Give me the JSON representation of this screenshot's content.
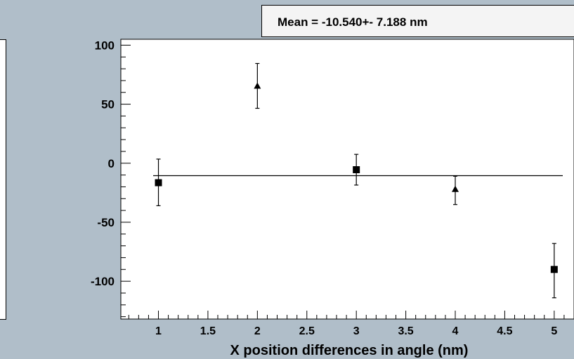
{
  "stats": {
    "mean_label": "Mean = -10.540+- 7.188 nm"
  },
  "chart_data": {
    "type": "scatter",
    "title": "",
    "xlabel": "X position differences in angle (nm)",
    "ylabel": "",
    "xlim": [
      0.62,
      5.2
    ],
    "ylim": [
      -132,
      105
    ],
    "xticks": [
      1,
      1.5,
      2,
      2.5,
      3,
      3.5,
      4,
      4.5,
      5
    ],
    "xtick_labels": [
      "1",
      "1.5",
      "2",
      "2.5",
      "3",
      "3.5",
      "4",
      "4.5",
      "5"
    ],
    "yticks": [
      100,
      50,
      0,
      -50,
      -100
    ],
    "ytick_labels": [
      "100",
      "50",
      "0",
      "-50",
      "-100"
    ],
    "mean_line": -10.54,
    "series": [
      {
        "marker": "square",
        "points": [
          {
            "x": 1,
            "y": -16.5,
            "err_low": 19.5,
            "err_high": 20
          },
          {
            "x": 3,
            "y": -5.5,
            "err_low": 13,
            "err_high": 13
          },
          {
            "x": 5,
            "y": -90,
            "err_low": 24,
            "err_high": 22
          }
        ]
      },
      {
        "marker": "triangle",
        "points": [
          {
            "x": 2,
            "y": 65.5,
            "err_low": 19,
            "err_high": 19
          },
          {
            "x": 4,
            "y": -22,
            "err_low": 13,
            "err_high": 11
          }
        ]
      }
    ],
    "grid": false,
    "legend": false
  }
}
